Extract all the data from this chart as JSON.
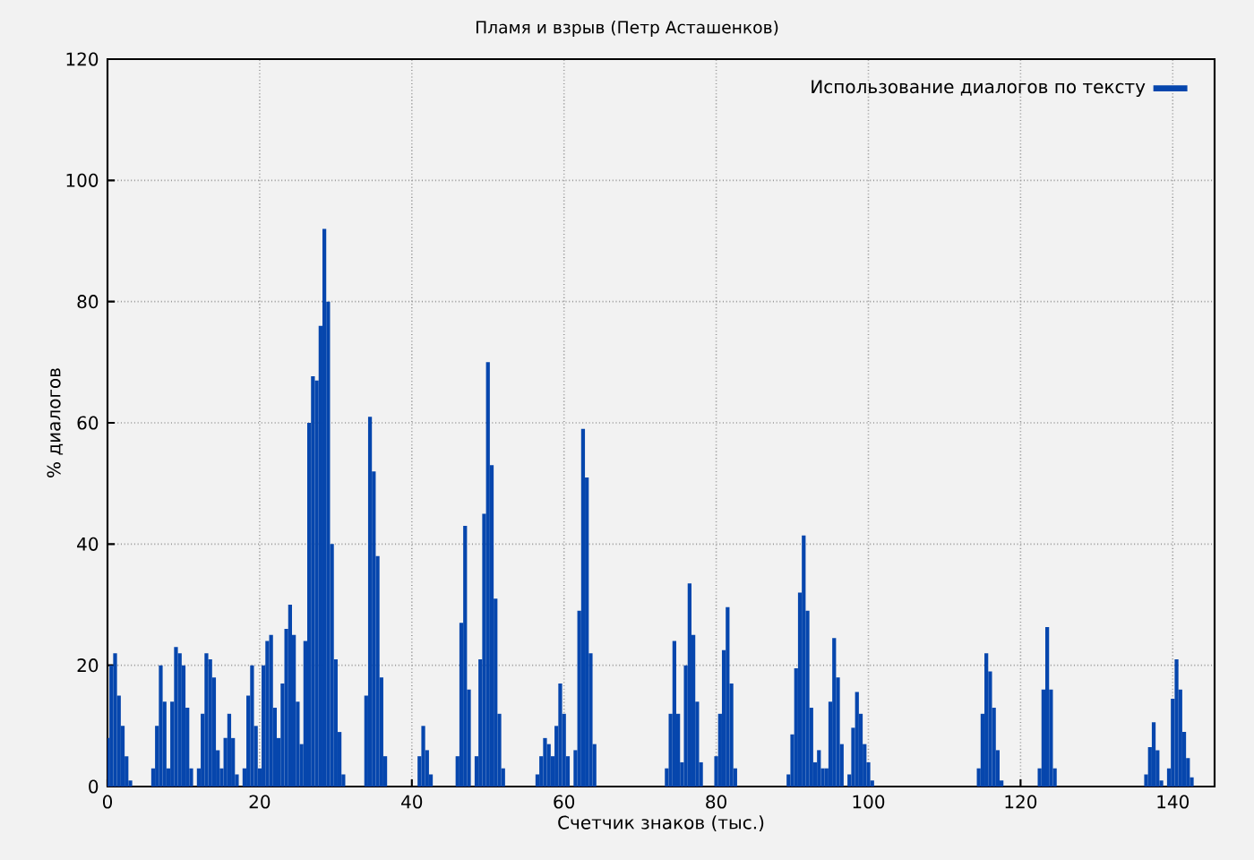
{
  "chart_data": {
    "type": "bar",
    "title": "Пламя и взрыв (Петр Асташенков)",
    "xlabel": "Счетчик знаков (тыс.)",
    "ylabel": "% диалогов",
    "x": [
      0,
      0.5,
      1,
      1.5,
      2,
      2.5,
      3,
      6,
      6.5,
      7,
      7.5,
      8,
      8.5,
      9,
      9.5,
      10,
      10.5,
      11,
      12,
      12.5,
      13,
      13.5,
      14,
      14.5,
      15,
      15.5,
      16,
      16.5,
      17,
      18,
      18.5,
      19,
      19.5,
      20,
      20.5,
      21,
      21.5,
      22,
      22.5,
      23,
      23.5,
      24,
      24.5,
      25,
      25.5,
      26,
      26.5,
      27,
      27.5,
      28,
      28.5,
      29,
      29.5,
      30,
      30.5,
      31,
      34,
      34.5,
      35,
      35.5,
      36,
      36.5,
      41,
      41.5,
      42,
      42.5,
      46,
      46.5,
      47,
      47.5,
      48.5,
      49,
      49.5,
      50,
      50.5,
      51,
      51.5,
      52,
      56.5,
      57,
      57.5,
      58,
      58.5,
      59,
      59.5,
      60,
      60.5,
      61.5,
      62,
      62.5,
      63,
      63.5,
      64,
      73.5,
      74,
      74.5,
      75,
      75.5,
      76,
      76.5,
      77,
      77.5,
      78,
      80,
      80.5,
      81,
      81.5,
      82,
      82.5,
      89.5,
      90,
      90.5,
      91,
      91.5,
      92,
      92.5,
      93,
      93.5,
      94,
      94.5,
      95,
      95.5,
      96,
      96.5,
      97.5,
      98,
      98.5,
      99,
      99.5,
      100,
      100.5,
      114.5,
      115,
      115.5,
      116,
      116.5,
      117,
      117.5,
      122.5,
      123,
      123.5,
      124,
      124.5,
      136.5,
      137,
      137.5,
      138,
      138.5,
      139.5,
      140,
      140.5,
      141,
      141.5,
      142,
      142.5
    ],
    "series": [
      {
        "name": "Использование диалогов по тексту",
        "color": "#0646ad",
        "values": [
          8,
          20,
          22,
          15,
          10,
          5,
          1,
          3,
          10,
          20,
          14,
          3,
          14,
          23,
          22,
          20,
          13,
          3,
          3,
          12,
          22,
          21,
          18,
          6,
          3,
          8,
          12,
          8,
          2,
          3,
          15,
          20,
          10,
          3,
          20,
          24,
          25,
          13,
          8,
          17,
          26,
          30,
          25,
          14,
          7,
          24,
          60,
          67.7,
          67,
          76,
          92,
          80,
          40,
          21,
          9,
          2,
          15,
          61,
          52,
          38,
          18,
          5,
          5,
          10,
          6,
          2,
          5,
          27,
          43,
          16,
          5,
          21,
          45,
          70,
          53,
          31,
          12,
          3,
          2,
          5,
          8,
          7,
          5,
          10,
          17,
          12,
          5,
          6,
          29,
          59,
          51,
          22,
          7,
          3,
          12,
          24,
          12,
          4,
          20,
          33.5,
          25,
          14,
          4,
          5,
          12,
          22.5,
          29.6,
          17,
          3,
          2,
          8.6,
          19.5,
          32,
          41.4,
          29,
          13,
          4,
          6,
          3,
          3,
          14,
          24.5,
          18,
          7,
          2,
          9.7,
          15.6,
          12,
          7,
          4,
          1,
          3,
          12,
          22,
          19,
          13,
          6,
          1,
          3,
          16,
          26.3,
          16,
          3,
          2,
          6.5,
          10.6,
          6,
          1,
          3,
          14.5,
          21,
          16,
          9,
          4.7,
          1.5
        ]
      }
    ],
    "xlim": [
      0,
      145.5
    ],
    "ylim": [
      0,
      120
    ],
    "xticks": [
      0,
      20,
      40,
      60,
      80,
      100,
      120,
      140
    ],
    "yticks": [
      0,
      20,
      40,
      60,
      80,
      100,
      120
    ],
    "grid": true,
    "legend": "top right"
  }
}
